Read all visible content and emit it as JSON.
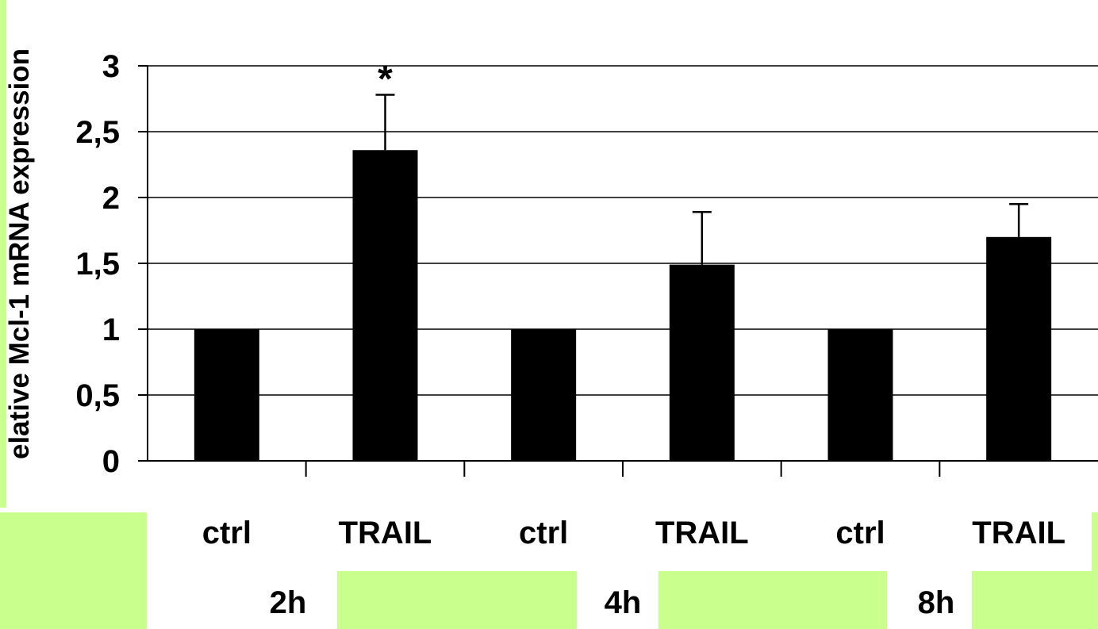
{
  "chart_data": {
    "type": "bar",
    "categories": [
      "ctrl",
      "TRAIL",
      "ctrl",
      "TRAIL",
      "ctrl",
      "TRAIL"
    ],
    "groups": [
      "2h",
      "4h",
      "8h"
    ],
    "values": [
      1.0,
      2.36,
      1.0,
      1.49,
      1.0,
      1.7
    ],
    "error_upper": [
      null,
      2.78,
      null,
      1.89,
      null,
      1.95
    ],
    "annotations": [
      "",
      "*",
      "",
      "",
      "",
      ""
    ],
    "ylabel": "elative Mcl-1 mRNA expression",
    "yticks": [
      "0",
      "0,5",
      "1",
      "1,5",
      "2",
      "2,5",
      "3"
    ],
    "ylim": [
      0,
      3
    ],
    "grid": true,
    "bar_color": "#000000",
    "highlight_color": "#c9ff8c"
  }
}
